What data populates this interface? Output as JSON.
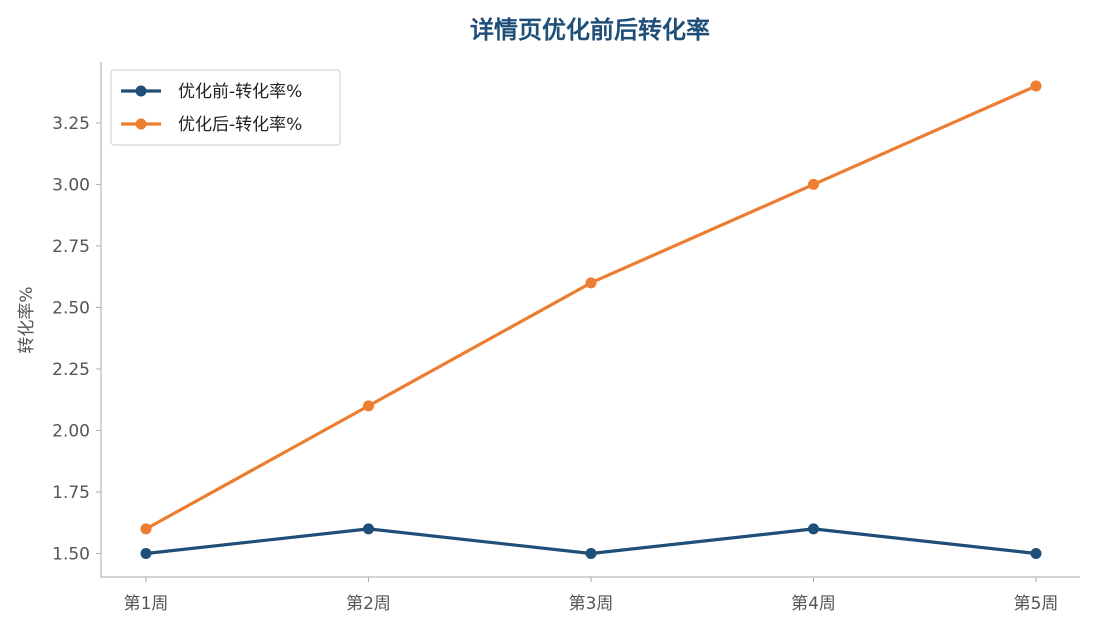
{
  "chart_data": {
    "type": "line",
    "title": "详情页优化前后转化率",
    "xlabel": "",
    "ylabel": "转化率%",
    "categories": [
      "第1周",
      "第2周",
      "第3周",
      "第4周",
      "第5周"
    ],
    "ylim": [
      1.41,
      3.5
    ],
    "yticks": [
      1.5,
      1.75,
      2.0,
      2.25,
      2.5,
      2.75,
      3.0,
      3.25
    ],
    "ytick_labels": [
      "1.50",
      "1.75",
      "2.00",
      "2.25",
      "2.50",
      "2.75",
      "3.00",
      "3.25"
    ],
    "grid": false,
    "legend_position": "top-left",
    "series": [
      {
        "name": "优化前-转化率%",
        "color": "#1f4e79",
        "values": [
          1.5,
          1.6,
          1.5,
          1.6,
          1.5
        ]
      },
      {
        "name": "优化后-转化率%",
        "color": "#ed7d31",
        "values": [
          1.6,
          2.1,
          2.6,
          3.0,
          3.4
        ]
      }
    ]
  }
}
